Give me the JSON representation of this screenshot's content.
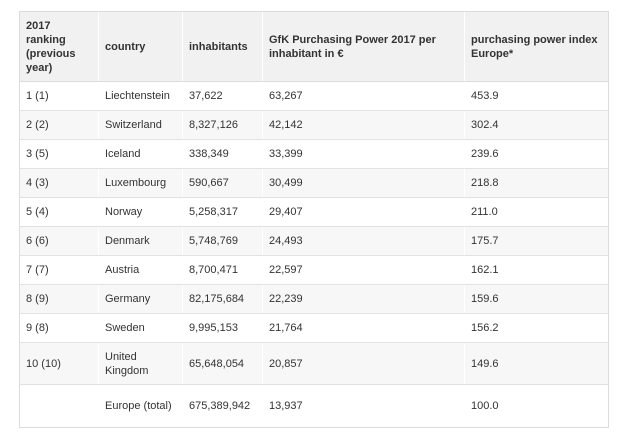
{
  "headers": {
    "rank": "2017 ranking (previous year)",
    "country": "country",
    "inhabitants": "inhabitants",
    "gfk": "GfK Purchasing Power 2017 per inhabitant in €",
    "index": "purchasing power index Europe*"
  },
  "rows": [
    {
      "rank": "1 (1)",
      "country": "Liechtenstein",
      "inhabitants": "37,622",
      "gfk": "63,267",
      "index": "453.9"
    },
    {
      "rank": "2 (2)",
      "country": "Switzerland",
      "inhabitants": "8,327,126",
      "gfk": "42,142",
      "index": "302.4"
    },
    {
      "rank": "3 (5)",
      "country": "Iceland",
      "inhabitants": "338,349",
      "gfk": "33,399",
      "index": "239.6"
    },
    {
      "rank": "4 (3)",
      "country": "Luxembourg",
      "inhabitants": "590,667",
      "gfk": "30,499",
      "index": "218.8"
    },
    {
      "rank": "5 (4)",
      "country": "Norway",
      "inhabitants": "5,258,317",
      "gfk": "29,407",
      "index": "211.0"
    },
    {
      "rank": "6 (6)",
      "country": "Denmark",
      "inhabitants": "5,748,769",
      "gfk": "24,493",
      "index": "175.7"
    },
    {
      "rank": "7 (7)",
      "country": "Austria",
      "inhabitants": "8,700,471",
      "gfk": "22,597",
      "index": "162.1"
    },
    {
      "rank": "8 (9)",
      "country": "Germany",
      "inhabitants": "82,175,684",
      "gfk": "22,239",
      "index": "159.6"
    },
    {
      "rank": "9 (8)",
      "country": "Sweden",
      "inhabitants": "9,995,153",
      "gfk": "21,764",
      "index": "156.2"
    },
    {
      "rank": "10 (10)",
      "country": "United Kingdom",
      "inhabitants": "65,648,054",
      "gfk": "20,857",
      "index": "149.6"
    },
    {
      "rank": "",
      "country": "Europe (total)",
      "inhabitants": "675,389,942",
      "gfk": "13,937",
      "index": "100.0"
    }
  ]
}
